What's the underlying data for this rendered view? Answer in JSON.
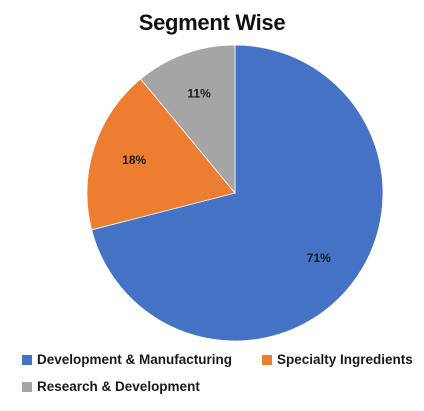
{
  "chart_data": {
    "type": "pie",
    "title": "Segment Wise",
    "categories": [
      "Development & Manufacturing",
      "Specialty Ingredients",
      "Research & Development"
    ],
    "values": [
      71,
      18,
      11
    ],
    "value_labels": [
      "71%",
      "18%",
      "11%"
    ],
    "colors": [
      "#4472C4",
      "#ED7D31",
      "#A5A5A5"
    ],
    "start": "12 o'clock, clockwise",
    "legend_position": "bottom"
  }
}
